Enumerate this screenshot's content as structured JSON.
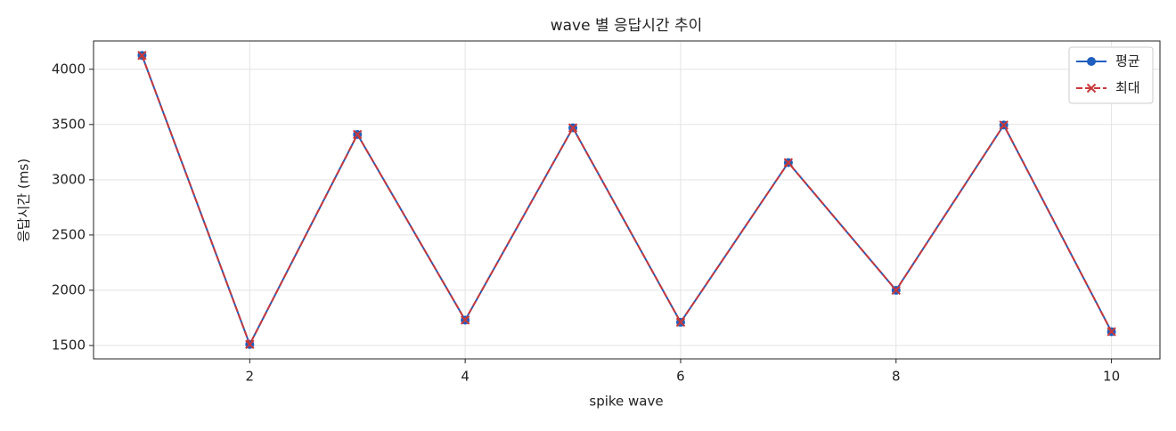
{
  "chart_data": {
    "type": "line",
    "title": "wave 별 응답시간 추이",
    "x_label": "spike wave",
    "y_label": "응답시간 (ms)",
    "x": [
      1,
      2,
      3,
      4,
      5,
      6,
      7,
      8,
      9,
      10
    ],
    "series": [
      {
        "name": "평균",
        "color": "#1f5fbf",
        "marker": "o",
        "linestyle": "solid",
        "values": [
          4125,
          1510,
          3410,
          1730,
          3470,
          1710,
          3155,
          2000,
          3495,
          1625
        ]
      },
      {
        "name": "최대",
        "color": "#c8383a",
        "marker": "x",
        "linestyle": "dashed",
        "values": [
          4125,
          1510,
          3410,
          1730,
          3470,
          1710,
          3155,
          2000,
          3495,
          1625
        ]
      }
    ],
    "xlim": [
      0.55,
      10.45
    ],
    "ylim": [
      1379,
      4256
    ],
    "xticks": [
      2,
      4,
      6,
      8,
      10
    ],
    "yticks": [
      1500,
      2000,
      2500,
      3000,
      3500,
      4000
    ],
    "grid": true,
    "legend": "upper right"
  }
}
